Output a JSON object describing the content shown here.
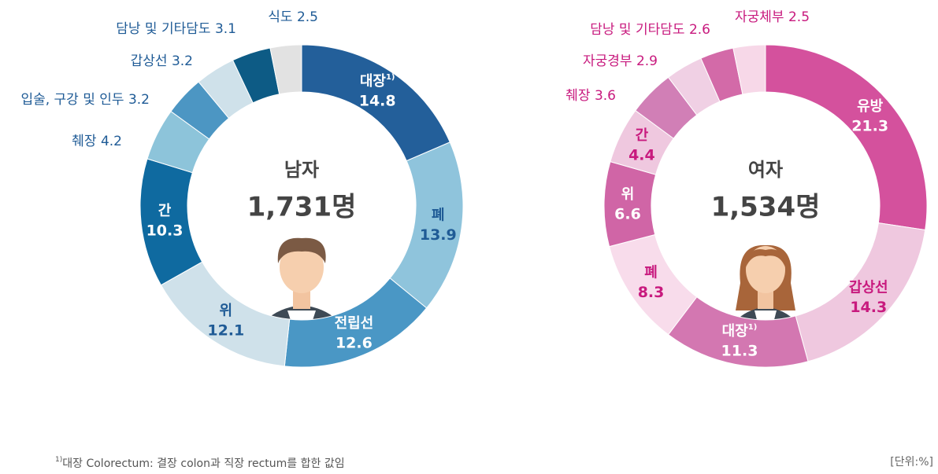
{
  "chart_data": [
    {
      "type": "donut",
      "title": "남자",
      "total": "1,731명",
      "categories": [
        "대장",
        "폐",
        "전립선",
        "위",
        "간",
        "췌장",
        "입술, 구강 및 인두",
        "갑상선",
        "담낭 및 기타담도",
        "식도"
      ],
      "category_notes": [
        "1)",
        null,
        null,
        null,
        null,
        null,
        null,
        null,
        null,
        null
      ],
      "values": [
        14.8,
        13.9,
        12.6,
        12.1,
        10.3,
        4.2,
        3.2,
        3.2,
        3.1,
        2.5
      ],
      "colors": [
        "#235f9a",
        "#8fc4dc",
        "#4a97c5",
        "#cfe1ea",
        "#0f6aa0",
        "#8dc4da",
        "#4c96c3",
        "#cfe1ea",
        "#0d5b85",
        "#e2e2e2"
      ]
    },
    {
      "type": "donut",
      "title": "여자",
      "total": "1,534명",
      "categories": [
        "유방",
        "갑상선",
        "대장",
        "폐",
        "위",
        "간",
        "췌장",
        "자궁경부",
        "담낭 및 기타담도",
        "자궁체부"
      ],
      "category_notes": [
        null,
        null,
        "1)",
        null,
        null,
        null,
        null,
        null,
        null,
        null
      ],
      "values": [
        21.3,
        14.3,
        11.3,
        8.3,
        6.6,
        4.4,
        3.6,
        2.9,
        2.6,
        2.5
      ],
      "colors": [
        "#d4519d",
        "#efc8df",
        "#d377b1",
        "#f8dceb",
        "#d065a6",
        "#efc8df",
        "#d17fb6",
        "#f0d0e4",
        "#d36aa8",
        "#f7d8e8"
      ]
    }
  ],
  "footnote": {
    "marker": "1)",
    "text": "대장 Colorectum: 결장 colon과 직장 rectum를 합한 값임"
  },
  "unit": "[단위:%]"
}
